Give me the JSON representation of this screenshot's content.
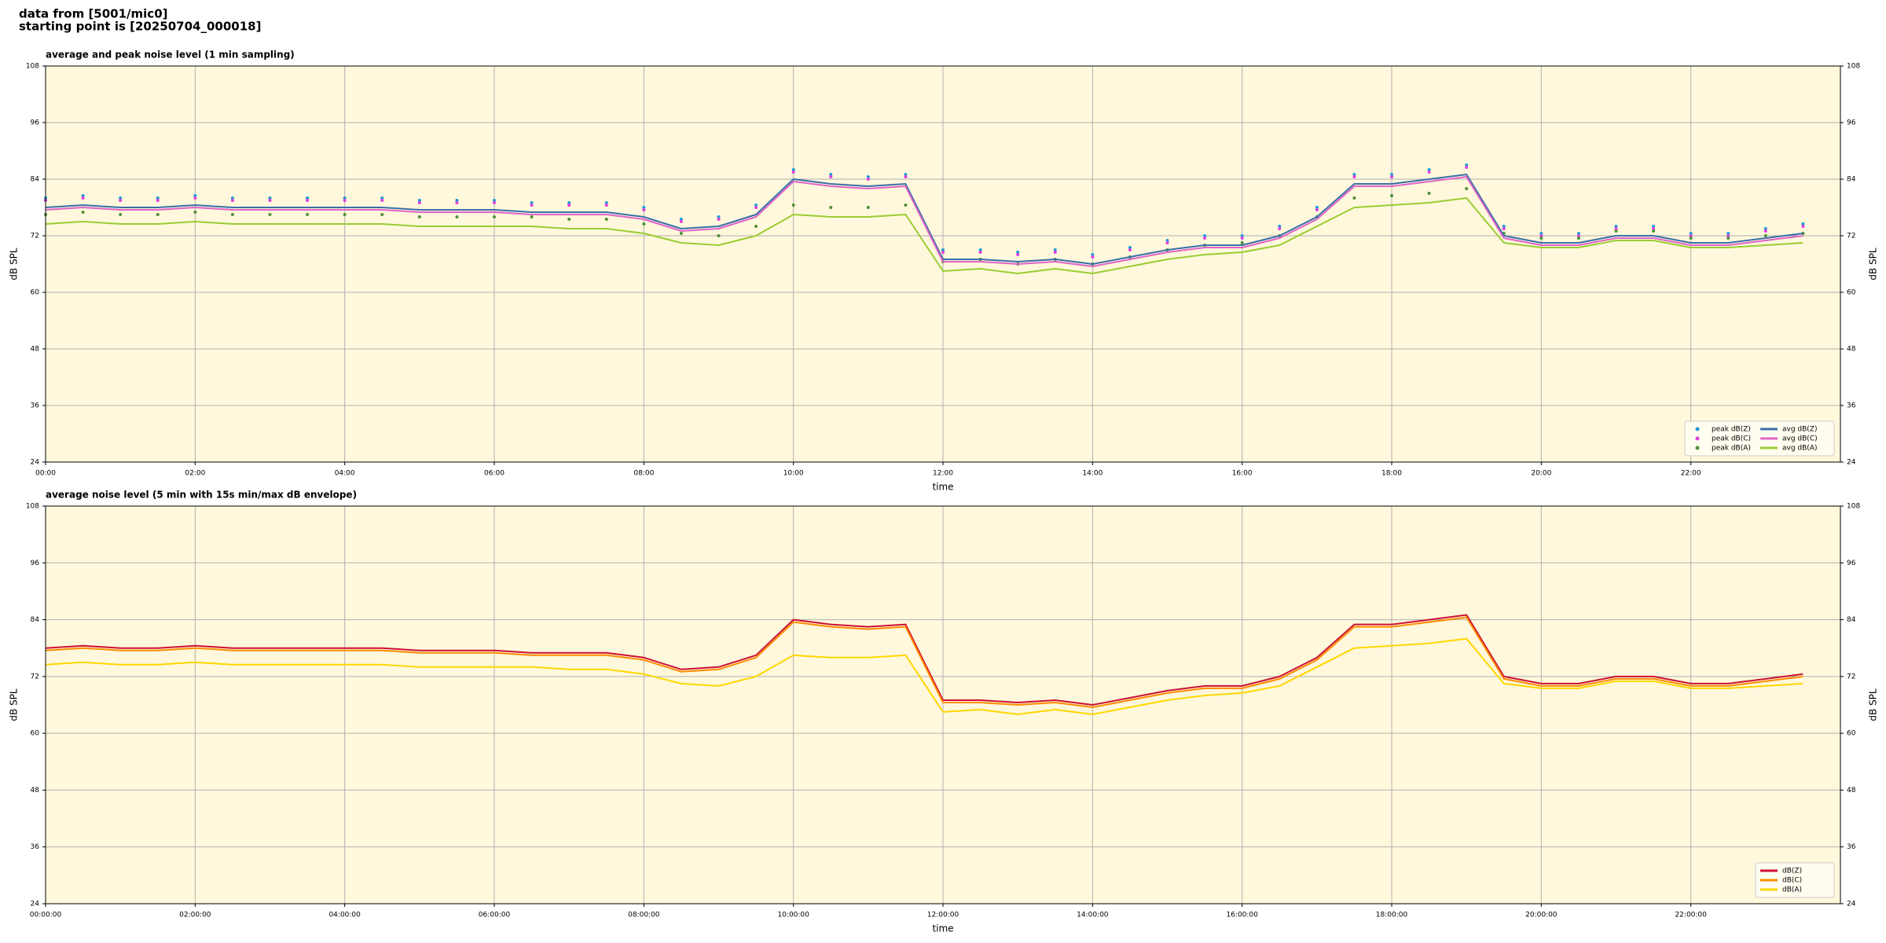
{
  "header": [
    "data from [5001/mic0]",
    "starting point is [20250704_000018]"
  ],
  "chart_data": [
    {
      "type": "line",
      "title": "average and peak noise level (1 min sampling)",
      "xlabel": "time",
      "ylabel": "dB SPL",
      "legend": "lower right",
      "legend_columns": 2,
      "grid": true,
      "xlim": [
        0,
        24
      ],
      "ylim": [
        24,
        108
      ],
      "yticks": [
        24,
        36,
        48,
        60,
        72,
        84,
        96,
        108
      ],
      "xticks": [
        {
          "value": 0,
          "label": "00:00"
        },
        {
          "value": 2,
          "label": "02:00"
        },
        {
          "value": 4,
          "label": "04:00"
        },
        {
          "value": 6,
          "label": "06:00"
        },
        {
          "value": 8,
          "label": "08:00"
        },
        {
          "value": 10,
          "label": "10:00"
        },
        {
          "value": 12,
          "label": "12:00"
        },
        {
          "value": 14,
          "label": "14:00"
        },
        {
          "value": 16,
          "label": "16:00"
        },
        {
          "value": 18,
          "label": "18:00"
        },
        {
          "value": 20,
          "label": "20:00"
        },
        {
          "value": 22,
          "label": "22:00"
        }
      ],
      "x": [
        0,
        0.5,
        1,
        1.5,
        2,
        2.5,
        3,
        3.5,
        4,
        4.5,
        5,
        5.5,
        6,
        6.5,
        7,
        7.5,
        8,
        8.5,
        9,
        9.5,
        10,
        10.5,
        11,
        11.5,
        12,
        12.5,
        13,
        13.5,
        14,
        14.5,
        15,
        15.5,
        16,
        16.5,
        17,
        17.5,
        18,
        18.5,
        19,
        19.5,
        20,
        20.5,
        21,
        21.5,
        22,
        22.5,
        23,
        23.5
      ],
      "series": [
        {
          "name": "peak dB(Z)",
          "type": "scatter",
          "color": "#1e9bd7",
          "values": [
            80,
            80.5,
            80,
            80,
            80.5,
            80,
            80,
            80,
            80,
            80,
            79.5,
            79.5,
            79.5,
            79,
            79,
            79,
            78,
            75.5,
            76,
            78.5,
            86,
            85,
            84.5,
            85,
            69,
            69,
            68.5,
            69,
            68,
            69.5,
            71,
            72,
            72,
            74,
            78,
            85,
            85,
            86,
            87,
            74,
            72.5,
            72.5,
            74,
            74,
            72.5,
            72.5,
            73.5,
            74.5
          ]
        },
        {
          "name": "peak dB(C)",
          "type": "scatter",
          "color": "#e040e0",
          "values": [
            79.5,
            80,
            79.5,
            79.5,
            80,
            79.5,
            79.5,
            79.5,
            79.5,
            79.5,
            79,
            79,
            79,
            78.5,
            78.5,
            78.5,
            77.5,
            75,
            75.5,
            78,
            85.5,
            84.5,
            84,
            84.5,
            68.5,
            68.5,
            68,
            68.5,
            67.5,
            69,
            70.5,
            71.5,
            71.5,
            73.5,
            77.5,
            84.5,
            84.5,
            85.5,
            86.5,
            73.5,
            72,
            72,
            73.5,
            73.5,
            72,
            72,
            73,
            74
          ]
        },
        {
          "name": "peak dB(A)",
          "type": "scatter",
          "color": "#4f8f3a",
          "values": [
            76.5,
            77,
            76.5,
            76.5,
            77,
            76.5,
            76.5,
            76.5,
            76.5,
            76.5,
            76,
            76,
            76,
            76,
            75.5,
            75.5,
            74.5,
            72.5,
            72,
            74,
            78.5,
            78,
            78,
            78.5,
            66.5,
            67,
            66,
            67,
            66,
            67.5,
            69,
            70,
            70.5,
            72,
            76,
            80,
            80.5,
            81,
            82,
            72.5,
            71.5,
            71.5,
            73,
            73,
            71.5,
            71.5,
            72,
            72.5
          ]
        },
        {
          "name": "avg dB(Z)",
          "type": "line",
          "color": "#3a6fa8",
          "values": [
            78,
            78.5,
            78,
            78,
            78.5,
            78,
            78,
            78,
            78,
            78,
            77.5,
            77.5,
            77.5,
            77,
            77,
            77,
            76,
            73.5,
            74,
            76.5,
            84,
            83,
            82.5,
            83,
            67,
            67,
            66.5,
            67,
            66,
            67.5,
            69,
            70,
            70,
            72,
            76,
            83,
            83,
            84,
            85,
            72,
            70.5,
            70.5,
            72,
            72,
            70.5,
            70.5,
            71.5,
            72.5
          ]
        },
        {
          "name": "avg dB(C)",
          "type": "line",
          "color": "#e064c8",
          "values": [
            77.5,
            78,
            77.5,
            77.5,
            78,
            77.5,
            77.5,
            77.5,
            77.5,
            77.5,
            77,
            77,
            77,
            76.5,
            76.5,
            76.5,
            75.5,
            73,
            73.5,
            76,
            83.5,
            82.5,
            82,
            82.5,
            66.5,
            66.5,
            66,
            66.5,
            65.5,
            67,
            68.5,
            69.5,
            69.5,
            71.5,
            75.5,
            82.5,
            82.5,
            83.5,
            84.5,
            71.5,
            70,
            70,
            71.5,
            71.5,
            70,
            70,
            71,
            72
          ]
        },
        {
          "name": "avg dB(A)",
          "type": "line",
          "color": "#9acd32",
          "values": [
            74.5,
            75,
            74.5,
            74.5,
            75,
            74.5,
            74.5,
            74.5,
            74.5,
            74.5,
            74,
            74,
            74,
            74,
            73.5,
            73.5,
            72.5,
            70.5,
            70,
            72,
            76.5,
            76,
            76,
            76.5,
            64.5,
            65,
            64,
            65,
            64,
            65.5,
            67,
            68,
            68.5,
            70,
            74,
            78,
            78.5,
            79,
            80,
            70.5,
            69.5,
            69.5,
            71,
            71,
            69.5,
            69.5,
            70,
            70.5
          ]
        }
      ]
    },
    {
      "type": "line",
      "title": "average noise level (5 min with 15s min/max dB envelope)",
      "xlabel": "time",
      "ylabel": "dB SPL",
      "legend": "lower right",
      "legend_columns": 1,
      "grid": true,
      "xlim": [
        0,
        24
      ],
      "ylim": [
        24,
        108
      ],
      "yticks": [
        24,
        36,
        48,
        60,
        72,
        84,
        96,
        108
      ],
      "xticks": [
        {
          "value": 0,
          "label": "00:00:00"
        },
        {
          "value": 2,
          "label": "02:00:00"
        },
        {
          "value": 4,
          "label": "04:00:00"
        },
        {
          "value": 6,
          "label": "06:00:00"
        },
        {
          "value": 8,
          "label": "08:00:00"
        },
        {
          "value": 10,
          "label": "10:00:00"
        },
        {
          "value": 12,
          "label": "12:00:00"
        },
        {
          "value": 14,
          "label": "14:00:00"
        },
        {
          "value": 16,
          "label": "16:00:00"
        },
        {
          "value": 18,
          "label": "18:00:00"
        },
        {
          "value": 20,
          "label": "20:00:00"
        },
        {
          "value": 22,
          "label": "22:00:00"
        }
      ],
      "x": [
        0,
        0.5,
        1,
        1.5,
        2,
        2.5,
        3,
        3.5,
        4,
        4.5,
        5,
        5.5,
        6,
        6.5,
        7,
        7.5,
        8,
        8.5,
        9,
        9.5,
        10,
        10.5,
        11,
        11.5,
        12,
        12.5,
        13,
        13.5,
        14,
        14.5,
        15,
        15.5,
        16,
        16.5,
        17,
        17.5,
        18,
        18.5,
        19,
        19.5,
        20,
        20.5,
        21,
        21.5,
        22,
        22.5,
        23,
        23.5
      ],
      "series": [
        {
          "name": "dB(Z)",
          "type": "line",
          "color": "#cc1133",
          "values": [
            78,
            78.5,
            78,
            78,
            78.5,
            78,
            78,
            78,
            78,
            78,
            77.5,
            77.5,
            77.5,
            77,
            77,
            77,
            76,
            73.5,
            74,
            76.5,
            84,
            83,
            82.5,
            83,
            67,
            67,
            66.5,
            67,
            66,
            67.5,
            69,
            70,
            70,
            72,
            76,
            83,
            83,
            84,
            85,
            72,
            70.5,
            70.5,
            72,
            72,
            70.5,
            70.5,
            71.5,
            72.5
          ]
        },
        {
          "name": "dB(C)",
          "type": "line",
          "color": "#ff8c00",
          "values": [
            77.5,
            78,
            77.5,
            77.5,
            78,
            77.5,
            77.5,
            77.5,
            77.5,
            77.5,
            77,
            77,
            77,
            76.5,
            76.5,
            76.5,
            75.5,
            73,
            73.5,
            76,
            83.5,
            82.5,
            82,
            82.5,
            66.5,
            66.5,
            66,
            66.5,
            65.5,
            67,
            68.5,
            69.5,
            69.5,
            71.5,
            75.5,
            82.5,
            82.5,
            83.5,
            84.5,
            71.5,
            70,
            70,
            71.5,
            71.5,
            70,
            70,
            71,
            72
          ]
        },
        {
          "name": "dB(A)",
          "type": "line",
          "color": "#ffd700",
          "values": [
            74.5,
            75,
            74.5,
            74.5,
            75,
            74.5,
            74.5,
            74.5,
            74.5,
            74.5,
            74,
            74,
            74,
            74,
            73.5,
            73.5,
            72.5,
            70.5,
            70,
            72,
            76.5,
            76,
            76,
            76.5,
            64.5,
            65,
            64,
            65,
            64,
            65.5,
            67,
            68,
            68.5,
            70,
            74,
            78,
            78.5,
            79,
            80,
            70.5,
            69.5,
            69.5,
            71,
            71,
            69.5,
            69.5,
            70,
            70.5
          ]
        }
      ]
    }
  ]
}
